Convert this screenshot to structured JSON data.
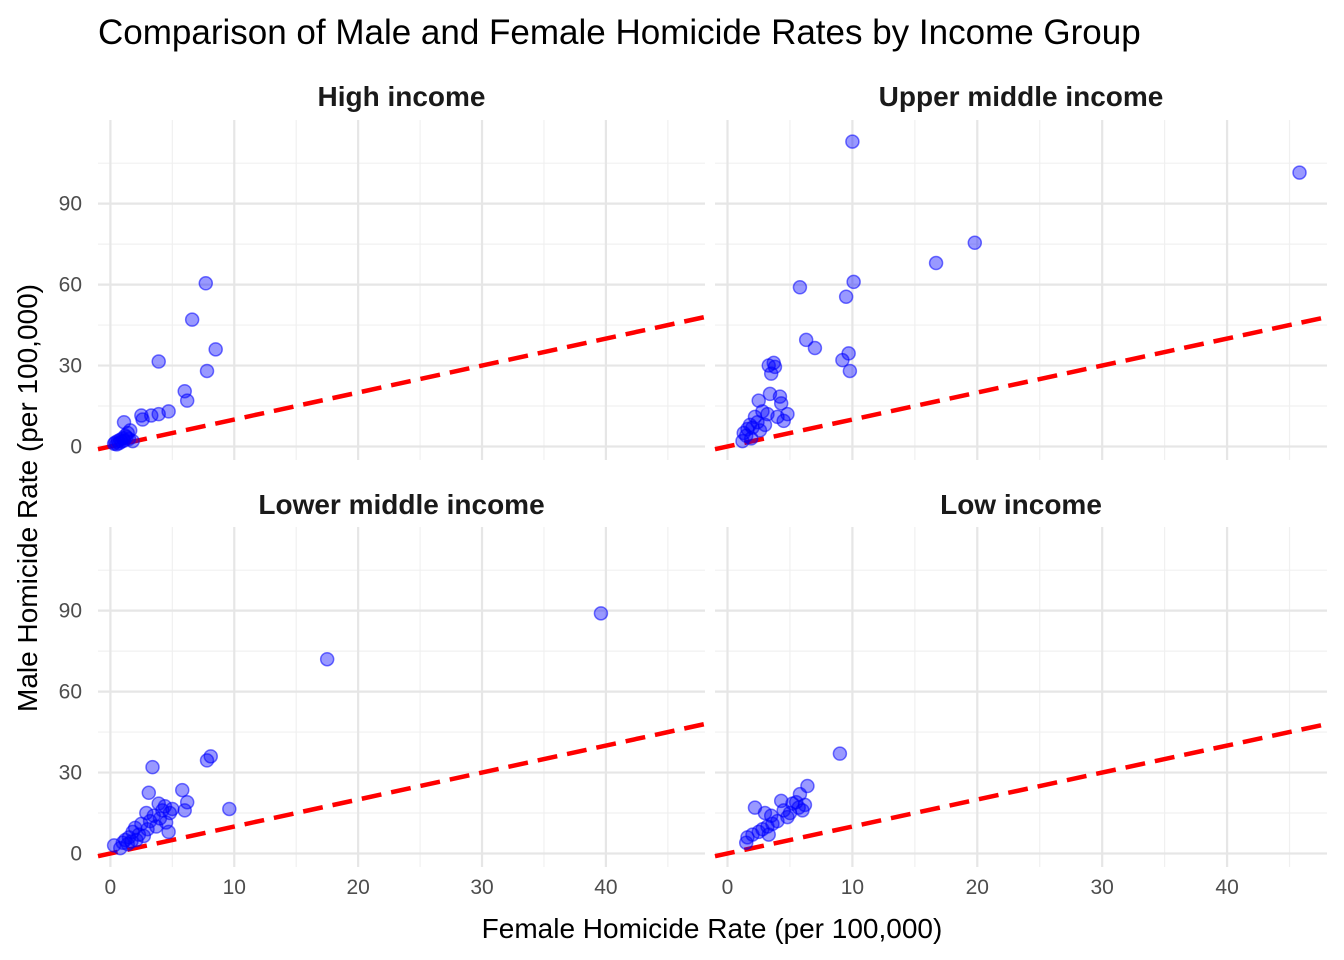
{
  "chart_data": {
    "type": "scatter",
    "title": "Comparison of Male and Female Homicide Rates by Income Group",
    "xlabel": "Female Homicide Rate (per 100,000)",
    "ylabel": "Male Homicide Rate (per 100,000)",
    "xlim": [
      -1,
      48
    ],
    "ylim": [
      -5,
      121
    ],
    "x_ticks": [
      "0",
      "10",
      "20",
      "30",
      "40"
    ],
    "y_ticks": [
      "0",
      "30",
      "60",
      "90"
    ],
    "x_tick_values": [
      0,
      10,
      20,
      30,
      40
    ],
    "y_tick_values": [
      0,
      30,
      60,
      90
    ],
    "grid": true,
    "reference_line": {
      "slope": 1,
      "intercept": 0,
      "color": "#ff0000",
      "style": "dashed"
    },
    "point_color": "#0000ff",
    "facets": [
      {
        "name": "High income",
        "points": [
          [
            0.3,
            1.0
          ],
          [
            0.4,
            1.5
          ],
          [
            0.5,
            0.8
          ],
          [
            0.6,
            2.0
          ],
          [
            0.7,
            1.2
          ],
          [
            0.8,
            2.5
          ],
          [
            0.9,
            1.8
          ],
          [
            1.0,
            3.0
          ],
          [
            1.1,
            2.2
          ],
          [
            1.2,
            4.0
          ],
          [
            1.3,
            3.5
          ],
          [
            1.4,
            5.0
          ],
          [
            1.5,
            2.8
          ],
          [
            1.6,
            6.0
          ],
          [
            1.8,
            2.0
          ],
          [
            1.1,
            9.0
          ],
          [
            2.5,
            11.5
          ],
          [
            2.6,
            10.0
          ],
          [
            3.3,
            11.5
          ],
          [
            3.9,
            12.0
          ],
          [
            4.7,
            13.0
          ],
          [
            3.9,
            31.5
          ],
          [
            6.0,
            20.5
          ],
          [
            6.2,
            17.0
          ],
          [
            6.6,
            47.0
          ],
          [
            7.7,
            60.5
          ],
          [
            7.8,
            28.0
          ],
          [
            8.5,
            36.0
          ]
        ]
      },
      {
        "name": "Upper middle income",
        "points": [
          [
            1.2,
            2.0
          ],
          [
            1.3,
            5.0
          ],
          [
            1.5,
            4.0
          ],
          [
            1.6,
            6.5
          ],
          [
            1.8,
            8.0
          ],
          [
            1.9,
            3.0
          ],
          [
            2.0,
            7.0
          ],
          [
            2.2,
            11.0
          ],
          [
            2.4,
            9.0
          ],
          [
            2.5,
            17.0
          ],
          [
            2.6,
            6.0
          ],
          [
            2.8,
            13.0
          ],
          [
            3.0,
            8.0
          ],
          [
            3.2,
            12.0
          ],
          [
            3.3,
            30.0
          ],
          [
            3.4,
            19.5
          ],
          [
            3.5,
            27.0
          ],
          [
            3.7,
            31.0
          ],
          [
            3.8,
            29.5
          ],
          [
            4.0,
            11.0
          ],
          [
            4.2,
            18.5
          ],
          [
            4.3,
            16.0
          ],
          [
            4.5,
            9.5
          ],
          [
            4.8,
            12.0
          ],
          [
            5.8,
            59.0
          ],
          [
            6.3,
            39.5
          ],
          [
            7.0,
            36.5
          ],
          [
            9.2,
            32.0
          ],
          [
            9.5,
            55.5
          ],
          [
            9.7,
            34.5
          ],
          [
            9.8,
            28.0
          ],
          [
            10.0,
            113.0
          ],
          [
            10.1,
            61.0
          ],
          [
            16.7,
            68.0
          ],
          [
            19.8,
            75.5
          ],
          [
            45.8,
            101.5
          ]
        ]
      },
      {
        "name": "Lower middle income",
        "points": [
          [
            0.3,
            3.0
          ],
          [
            0.8,
            2.0
          ],
          [
            1.0,
            4.0
          ],
          [
            1.2,
            5.0
          ],
          [
            1.4,
            3.5
          ],
          [
            1.5,
            6.0
          ],
          [
            1.7,
            4.5
          ],
          [
            1.8,
            8.0
          ],
          [
            2.0,
            9.5
          ],
          [
            2.1,
            5.0
          ],
          [
            2.3,
            7.0
          ],
          [
            2.5,
            11.0
          ],
          [
            2.7,
            6.5
          ],
          [
            2.9,
            15.0
          ],
          [
            3.0,
            9.0
          ],
          [
            3.1,
            22.5
          ],
          [
            3.2,
            12.0
          ],
          [
            3.4,
            32.0
          ],
          [
            3.5,
            14.0
          ],
          [
            3.7,
            10.0
          ],
          [
            3.9,
            18.5
          ],
          [
            4.0,
            13.0
          ],
          [
            4.2,
            16.0
          ],
          [
            4.4,
            17.5
          ],
          [
            4.5,
            11.5
          ],
          [
            4.7,
            8.0
          ],
          [
            4.8,
            15.0
          ],
          [
            5.0,
            16.5
          ],
          [
            5.8,
            23.5
          ],
          [
            6.0,
            16.0
          ],
          [
            6.2,
            19.0
          ],
          [
            7.8,
            34.5
          ],
          [
            8.1,
            36.0
          ],
          [
            9.6,
            16.5
          ],
          [
            17.5,
            72.0
          ],
          [
            39.6,
            89.0
          ]
        ]
      },
      {
        "name": "Low income",
        "points": [
          [
            1.5,
            4.0
          ],
          [
            1.6,
            6.0
          ],
          [
            2.0,
            7.0
          ],
          [
            2.2,
            17.0
          ],
          [
            2.5,
            8.0
          ],
          [
            2.8,
            9.0
          ],
          [
            3.0,
            15.0
          ],
          [
            3.2,
            10.0
          ],
          [
            3.3,
            7.0
          ],
          [
            3.5,
            14.0
          ],
          [
            3.6,
            11.0
          ],
          [
            4.0,
            12.0
          ],
          [
            4.3,
            19.5
          ],
          [
            4.5,
            16.0
          ],
          [
            4.8,
            13.5
          ],
          [
            5.0,
            15.0
          ],
          [
            5.2,
            18.5
          ],
          [
            5.5,
            19.0
          ],
          [
            5.7,
            17.0
          ],
          [
            5.8,
            22.0
          ],
          [
            6.0,
            16.0
          ],
          [
            6.2,
            18.0
          ],
          [
            6.4,
            25.0
          ],
          [
            9.0,
            37.0
          ]
        ]
      }
    ]
  }
}
